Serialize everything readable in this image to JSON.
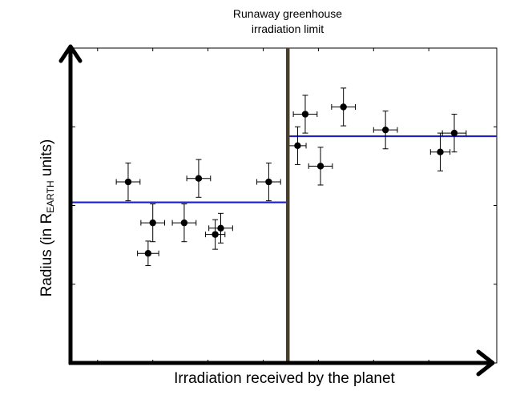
{
  "chart_data": {
    "type": "scatter",
    "title": "",
    "xlabel": "Irradiation received by the planet",
    "ylabel": {
      "prefix": "Radius (in R",
      "subscript": "EARTH",
      "suffix": " units)"
    },
    "xlim": [
      0,
      100
    ],
    "ylim": [
      0,
      100
    ],
    "x_tick_values": [
      6,
      19,
      32,
      45,
      58,
      71,
      84
    ],
    "y_tick_values": [
      25,
      50,
      75,
      100
    ],
    "grid": false,
    "annotation": {
      "lines": [
        "Runaway greenhouse",
        "irradiation limit"
      ]
    },
    "limit": {
      "x": 50.8,
      "color": "#4a3f2c"
    },
    "fit_lines": [
      {
        "x_range": [
          0,
          50.8
        ],
        "y": 51,
        "color": "#1f1fc4"
      },
      {
        "x_range": [
          50.8,
          100
        ],
        "y": 72,
        "color": "#1f1fc4"
      }
    ],
    "points": [
      {
        "x": 13.2,
        "y": 57.5,
        "xerr": 2.8,
        "yerr": 6.0
      },
      {
        "x": 17.9,
        "y": 34.8,
        "xerr": 2.5,
        "yerr": 3.9
      },
      {
        "x": 19.0,
        "y": 44.5,
        "xerr": 2.8,
        "yerr": 6.0
      },
      {
        "x": 26.4,
        "y": 44.5,
        "xerr": 2.8,
        "yerr": 6.0
      },
      {
        "x": 29.8,
        "y": 58.6,
        "xerr": 2.8,
        "yerr": 6.0
      },
      {
        "x": 33.7,
        "y": 40.8,
        "xerr": 2.3,
        "yerr": 4.7
      },
      {
        "x": 35.0,
        "y": 42.8,
        "xerr": 2.8,
        "yerr": 4.7
      },
      {
        "x": 46.3,
        "y": 57.5,
        "xerr": 2.8,
        "yerr": 6.0
      },
      {
        "x": 53.1,
        "y": 69.0,
        "xerr": 2.0,
        "yerr": 6.0
      },
      {
        "x": 54.9,
        "y": 79.0,
        "xerr": 2.8,
        "yerr": 6.0
      },
      {
        "x": 58.5,
        "y": 62.5,
        "xerr": 2.8,
        "yerr": 6.0
      },
      {
        "x": 63.9,
        "y": 81.3,
        "xerr": 2.8,
        "yerr": 6.0
      },
      {
        "x": 73.8,
        "y": 74.0,
        "xerr": 2.8,
        "yerr": 6.0
      },
      {
        "x": 86.7,
        "y": 67.0,
        "xerr": 2.3,
        "yerr": 6.0
      },
      {
        "x": 90.0,
        "y": 73.0,
        "xerr": 2.8,
        "yerr": 6.0
      }
    ]
  }
}
